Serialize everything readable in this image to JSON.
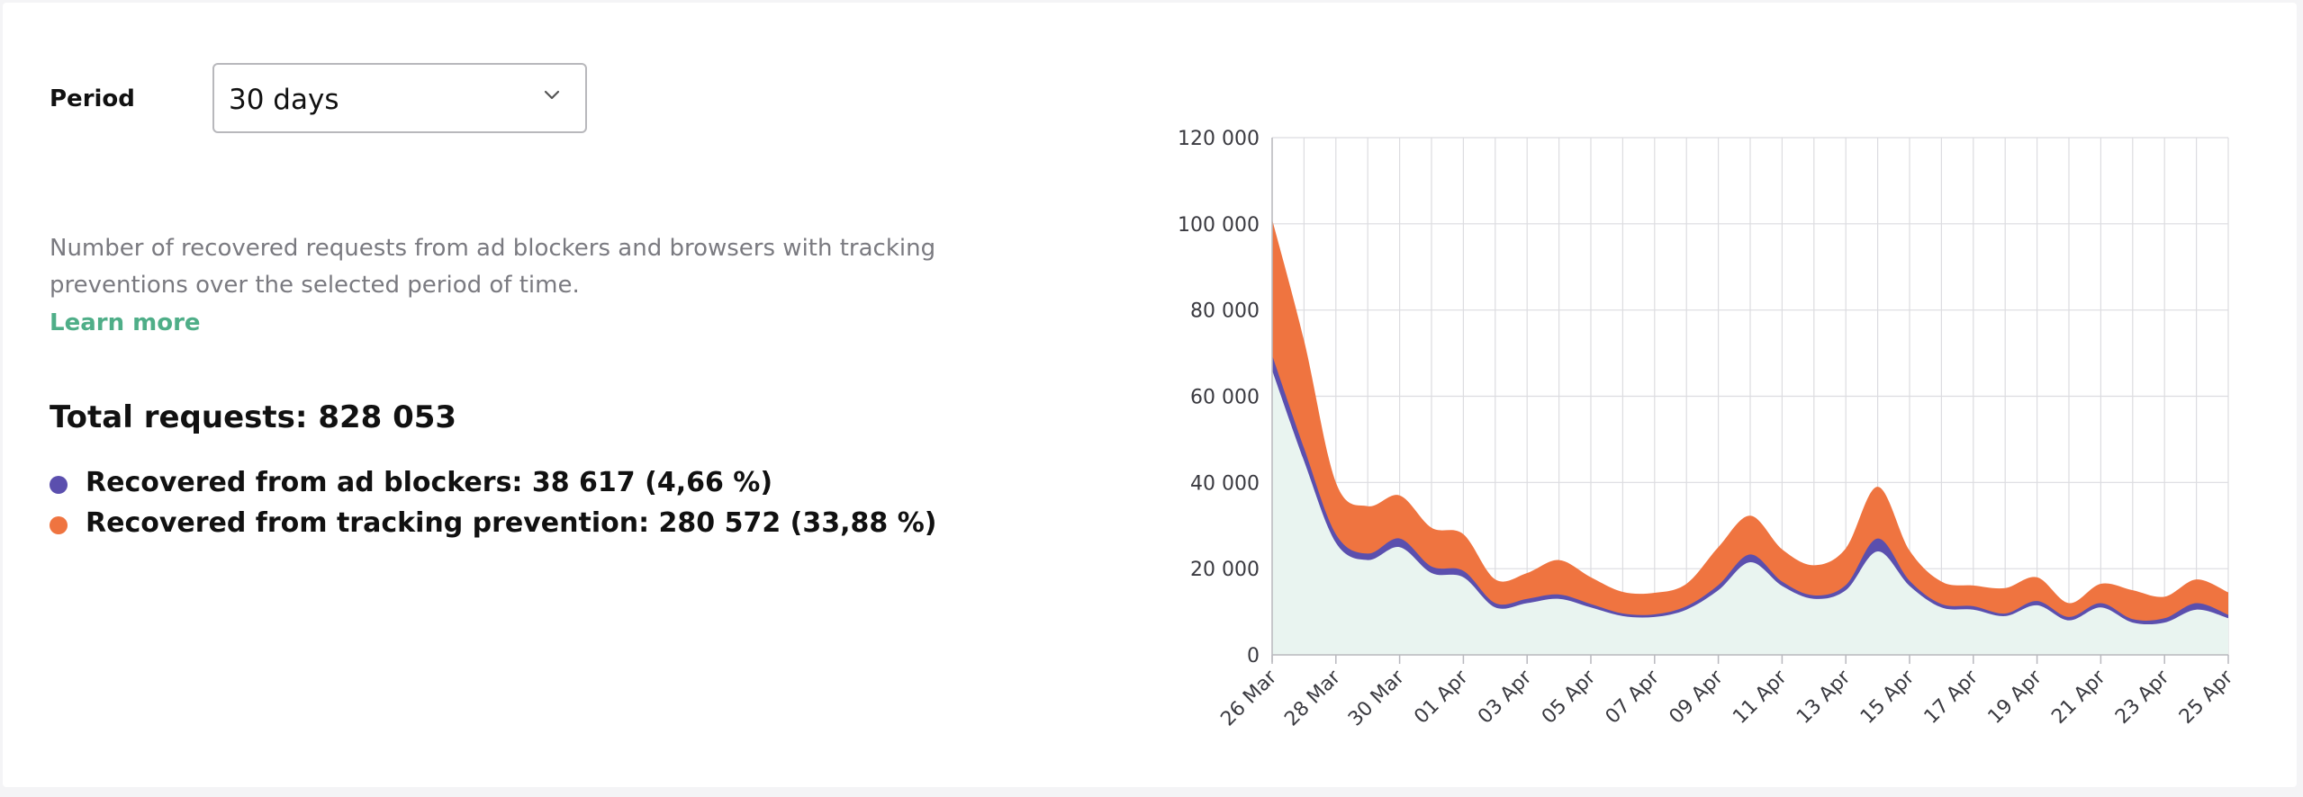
{
  "filter": {
    "period_label": "Period",
    "period_value": "30 days"
  },
  "summary": {
    "description": "Number of recovered requests from ad blockers and browsers with tracking preventions over the selected period of time.",
    "learn_more": "Learn more",
    "total": "Total requests: 828 053",
    "ad_blockers": "Recovered from ad blockers: 38 617 (4,66 %)",
    "tracking_prevention": "Recovered from tracking prevention: 280 572 (33,88 %)"
  },
  "colors": {
    "base": "#e9f4f0",
    "ad_blockers": "#5b4fae",
    "tracking_prevention": "#ef7440",
    "grid": "#dcdce0",
    "link": "#4fae88"
  },
  "icons": {
    "select_chevron": "chevron-down-icon"
  },
  "chart_data": {
    "type": "area",
    "stacked": true,
    "grid": true,
    "y_ticks": [
      "0",
      "20 000",
      "40 000",
      "60 000",
      "80 000",
      "100 000",
      "120 000"
    ],
    "ylim": [
      0,
      120000
    ],
    "x_ticks": [
      "26 Mar",
      "28 Mar",
      "30 Mar",
      "01 Apr",
      "03 Apr",
      "05 Apr",
      "07 Apr",
      "09 Apr",
      "11 Apr",
      "13 Apr",
      "15 Apr",
      "17 Apr",
      "19 Apr",
      "21 Apr",
      "23 Apr",
      "25 Apr"
    ],
    "x": [
      "26 Mar",
      "27 Mar",
      "28 Mar",
      "29 Mar",
      "30 Mar",
      "31 Mar",
      "01 Apr",
      "02 Apr",
      "03 Apr",
      "04 Apr",
      "05 Apr",
      "06 Apr",
      "07 Apr",
      "08 Apr",
      "09 Apr",
      "10 Apr",
      "11 Apr",
      "12 Apr",
      "13 Apr",
      "14 Apr",
      "15 Apr",
      "16 Apr",
      "17 Apr",
      "18 Apr",
      "19 Apr",
      "20 Apr",
      "21 Apr",
      "22 Apr",
      "23 Apr",
      "24 Apr",
      "25 Apr"
    ],
    "series": [
      {
        "key": "base",
        "values": [
          66000,
          45000,
          26000,
          22000,
          25000,
          19000,
          18000,
          11000,
          12000,
          13000,
          11000,
          9000,
          8800,
          10500,
          15000,
          21500,
          16000,
          13000,
          15000,
          24000,
          16000,
          11000,
          10500,
          9000,
          11500,
          8000,
          11000,
          7500,
          7500,
          10500,
          8500
        ]
      },
      {
        "key": "ad_blockers",
        "values": [
          3500,
          3000,
          2000,
          1500,
          2000,
          1500,
          1500,
          1000,
          1000,
          1000,
          800,
          600,
          600,
          800,
          1200,
          1800,
          1000,
          800,
          1200,
          3000,
          1200,
          800,
          800,
          600,
          1000,
          800,
          1000,
          800,
          1000,
          1500,
          800
        ]
      },
      {
        "key": "tracking_prevention",
        "values": [
          31500,
          25000,
          12000,
          11000,
          10000,
          9000,
          8500,
          5500,
          6000,
          8000,
          6200,
          5000,
          5000,
          5200,
          8800,
          9000,
          7500,
          7000,
          8500,
          12000,
          7000,
          5200,
          4800,
          5900,
          5500,
          3200,
          4500,
          6700,
          5000,
          5500,
          5200
        ]
      }
    ]
  }
}
